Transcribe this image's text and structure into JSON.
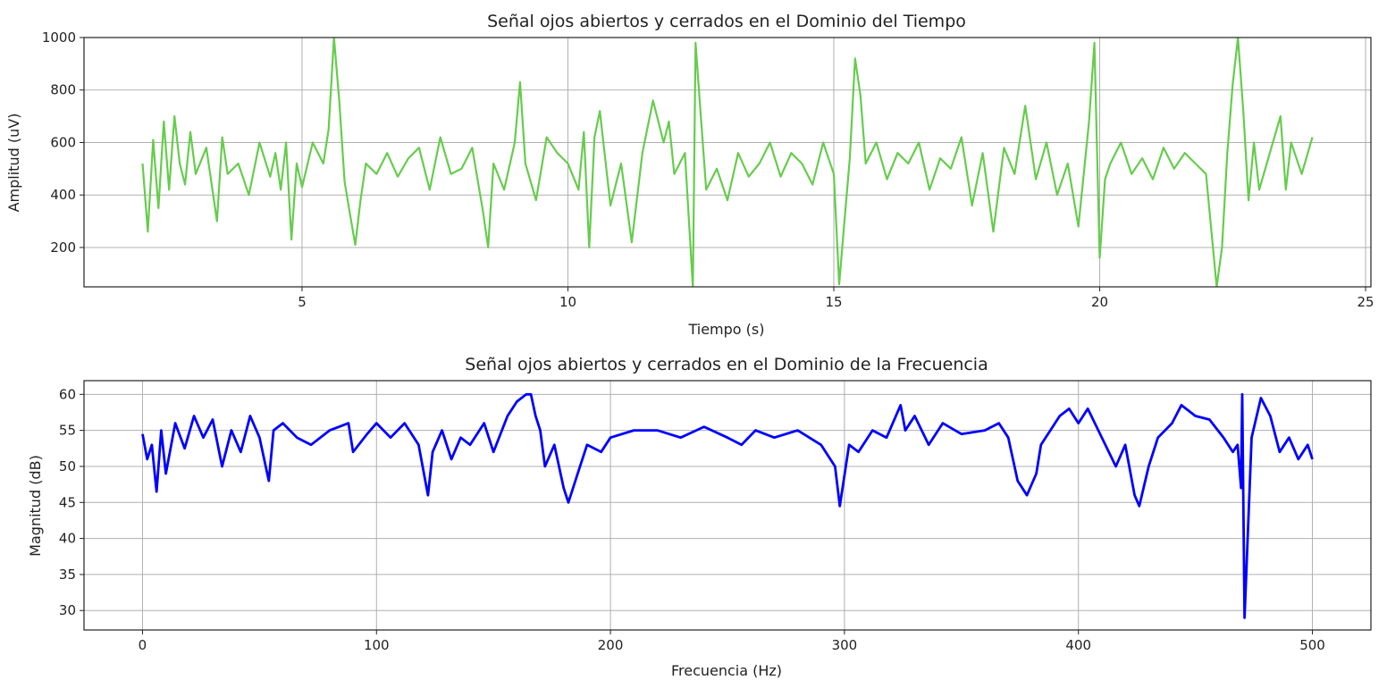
{
  "chart_data": [
    {
      "type": "line",
      "title": "Señal ojos abiertos y cerrados en el Dominio del Tiempo",
      "xlabel": "Tiempo (s)",
      "ylabel": "Amplitud (uV)",
      "xlim": [
        0.9,
        25.1
      ],
      "ylim": [
        50,
        1000
      ],
      "xticks": [
        5,
        10,
        15,
        20,
        25
      ],
      "xtick_labels": [
        "5",
        "10",
        "15",
        "20",
        "25"
      ],
      "yticks": [
        200,
        400,
        600,
        800,
        1000
      ],
      "ytick_labels": [
        "200",
        "400",
        "600",
        "800",
        "1000"
      ],
      "grid": true,
      "color": "#66cc4d",
      "series": [
        {
          "x": [
            2.0,
            2.1,
            2.2,
            2.3,
            2.4,
            2.5,
            2.6,
            2.7,
            2.8,
            2.9,
            3.0,
            3.2,
            3.4,
            3.5,
            3.6,
            3.8,
            4.0,
            4.2,
            4.4,
            4.5,
            4.6,
            4.7,
            4.8,
            4.9,
            5.0,
            5.2,
            5.4,
            5.5,
            5.6,
            5.7,
            5.8,
            5.9,
            6.0,
            6.1,
            6.2,
            6.4,
            6.6,
            6.8,
            7.0,
            7.2,
            7.4,
            7.6,
            7.8,
            8.0,
            8.2,
            8.4,
            8.5,
            8.6,
            8.8,
            9.0,
            9.1,
            9.2,
            9.4,
            9.6,
            9.8,
            10.0,
            10.2,
            10.3,
            10.4,
            10.5,
            10.6,
            10.8,
            11.0,
            11.2,
            11.4,
            11.6,
            11.8,
            11.9,
            12.0,
            12.2,
            12.35,
            12.4,
            12.5,
            12.6,
            12.8,
            13.0,
            13.2,
            13.4,
            13.6,
            13.8,
            14.0,
            14.2,
            14.4,
            14.6,
            14.8,
            15.0,
            15.1,
            15.2,
            15.3,
            15.4,
            15.5,
            15.6,
            15.8,
            16.0,
            16.2,
            16.4,
            16.6,
            16.8,
            17.0,
            17.2,
            17.4,
            17.6,
            17.8,
            18.0,
            18.2,
            18.4,
            18.6,
            18.8,
            19.0,
            19.2,
            19.4,
            19.6,
            19.8,
            19.9,
            20.0,
            20.1,
            20.2,
            20.4,
            20.6,
            20.8,
            21.0,
            21.2,
            21.4,
            21.6,
            21.8,
            22.0,
            22.2,
            22.3,
            22.4,
            22.5,
            22.6,
            22.7,
            22.8,
            22.9,
            23.0,
            23.2,
            23.4,
            23.5,
            23.6,
            23.8,
            24.0
          ],
          "y": [
            520,
            260,
            610,
            350,
            680,
            420,
            700,
            520,
            440,
            640,
            480,
            580,
            300,
            620,
            480,
            520,
            400,
            600,
            470,
            560,
            420,
            600,
            230,
            520,
            430,
            600,
            520,
            650,
            1000,
            760,
            450,
            330,
            210,
            380,
            520,
            480,
            560,
            470,
            540,
            580,
            420,
            620,
            480,
            500,
            580,
            340,
            200,
            520,
            420,
            600,
            830,
            520,
            380,
            620,
            560,
            520,
            420,
            640,
            200,
            620,
            720,
            360,
            520,
            220,
            560,
            760,
            600,
            680,
            480,
            560,
            50,
            980,
            700,
            420,
            500,
            380,
            560,
            470,
            520,
            600,
            470,
            560,
            520,
            440,
            600,
            480,
            60,
            300,
            540,
            920,
            780,
            520,
            600,
            460,
            560,
            520,
            600,
            420,
            540,
            500,
            620,
            360,
            560,
            260,
            580,
            480,
            740,
            460,
            600,
            400,
            520,
            280,
            680,
            980,
            160,
            460,
            520,
            600,
            480,
            540,
            460,
            580,
            500,
            560,
            520,
            480,
            50,
            200,
            560,
            820,
            1000,
            720,
            380,
            600,
            420,
            560,
            700,
            420,
            600,
            480,
            620
          ]
        }
      ]
    },
    {
      "type": "line",
      "title": "Señal ojos abiertos y cerrados en el Dominio de la Frecuencia",
      "xlabel": "Frecuencia (Hz)",
      "ylabel": "Magnitud (dB)",
      "xlim": [
        -25,
        525
      ],
      "ylim": [
        27.3,
        61.9
      ],
      "xticks": [
        0,
        100,
        200,
        300,
        400,
        500
      ],
      "xtick_labels": [
        "0",
        "100",
        "200",
        "300",
        "400",
        "500"
      ],
      "yticks": [
        30,
        35,
        40,
        45,
        50,
        55,
        60
      ],
      "ytick_labels": [
        "30",
        "35",
        "40",
        "45",
        "50",
        "55",
        "60"
      ],
      "grid": true,
      "color": "#0000ff",
      "series": [
        {
          "x": [
            0,
            2,
            4,
            6,
            8,
            10,
            14,
            18,
            22,
            26,
            30,
            34,
            38,
            42,
            46,
            50,
            54,
            56,
            60,
            66,
            72,
            80,
            88,
            90,
            96,
            100,
            106,
            112,
            118,
            122,
            124,
            128,
            132,
            136,
            140,
            146,
            150,
            156,
            160,
            164,
            166,
            168,
            170,
            172,
            176,
            180,
            182,
            186,
            190,
            196,
            200,
            210,
            220,
            230,
            240,
            250,
            256,
            262,
            270,
            280,
            290,
            296,
            298,
            302,
            306,
            312,
            318,
            324,
            326,
            330,
            336,
            342,
            350,
            360,
            366,
            370,
            374,
            378,
            382,
            384,
            388,
            392,
            396,
            400,
            404,
            410,
            416,
            420,
            424,
            426,
            430,
            434,
            440,
            444,
            450,
            456,
            462,
            466,
            468,
            469.5,
            470,
            471,
            474,
            478,
            482,
            486,
            490,
            494,
            498,
            500
          ],
          "y": [
            54.5,
            51,
            53,
            46.5,
            55,
            49,
            56,
            52.5,
            57,
            54,
            56.5,
            50,
            55,
            52,
            57,
            54,
            48,
            55,
            56,
            54,
            53,
            55,
            56,
            52,
            54.5,
            56,
            54,
            56,
            53,
            46,
            52,
            55,
            51,
            54,
            53,
            56,
            52,
            57,
            59,
            60,
            60,
            57,
            55,
            50,
            53,
            47,
            45,
            49,
            53,
            52,
            54,
            55,
            55,
            54,
            55.5,
            54,
            53,
            55,
            54,
            55,
            53,
            50,
            44.5,
            53,
            52,
            55,
            54,
            58.5,
            55,
            57,
            53,
            56,
            54.5,
            55,
            56,
            54,
            48,
            46,
            49,
            53,
            55,
            57,
            58,
            56,
            58,
            54,
            50,
            53,
            46,
            44.5,
            50,
            54,
            56,
            58.5,
            57,
            56.5,
            54,
            52,
            53,
            47,
            60,
            29,
            54,
            59.5,
            57,
            52,
            54,
            51,
            53,
            51
          ]
        }
      ]
    }
  ]
}
